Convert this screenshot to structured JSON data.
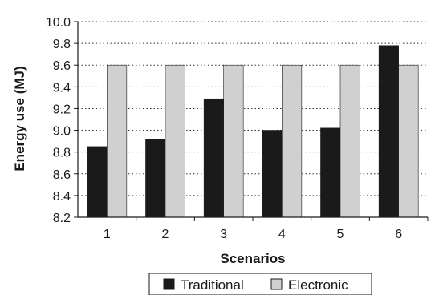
{
  "chart_data": {
    "type": "bar",
    "xlabel": "Scenarios",
    "ylabel": "Energy use (MJ)",
    "categories": [
      "1",
      "2",
      "3",
      "4",
      "5",
      "6"
    ],
    "ylim": [
      8.2,
      10.0
    ],
    "yticks": [
      "8.2",
      "8.4",
      "8.6",
      "8.8",
      "9.0",
      "9.2",
      "9.4",
      "9.6",
      "9.8",
      "10.0"
    ],
    "grid": true,
    "legend_position": "bottom",
    "series": [
      {
        "name": "Traditional",
        "color": "#1a1a1a",
        "values": [
          8.85,
          8.92,
          9.29,
          9.0,
          9.02,
          9.78
        ]
      },
      {
        "name": "Electronic",
        "color": "#d0d0d0",
        "values": [
          9.6,
          9.6,
          9.6,
          9.6,
          9.6,
          9.6
        ]
      }
    ]
  }
}
